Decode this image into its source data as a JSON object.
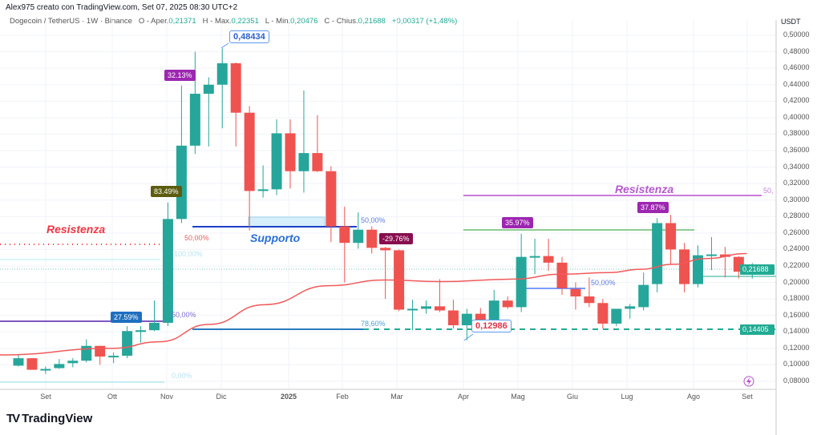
{
  "header": {
    "credit": "Alex975 creato con TradingView.com, Set 07, 2025 08:30 UTC+2",
    "symbol": "Dogecoin / TetherUS · 1W · Binance",
    "open_label": "O - Aper.",
    "open": "0,21371",
    "high_label": "H - Max.",
    "high": "0,22351",
    "low_label": "L - Min.",
    "low": "0,20476",
    "close_label": "C - Chius.",
    "close": "0,21688",
    "change": "+0,00317 (+1,48%)"
  },
  "price_axis": {
    "currency": "USDT",
    "ticks": [
      "0,50000",
      "0,48000",
      "0,46000",
      "0,44000",
      "0,42000",
      "0,40000",
      "0,38000",
      "0,36000",
      "0,34000",
      "0,32000",
      "0,30000",
      "0,28000",
      "0,26000",
      "0,24000",
      "0,22000",
      "0,20000",
      "0,18000",
      "0,16000",
      "0,14000",
      "0,12000",
      "0,10000",
      "0,08000"
    ],
    "current_price": "0,21688",
    "level_price": "0,14405"
  },
  "time_axis": [
    "Set",
    "Ott",
    "Nov",
    "Dic",
    "2025",
    "Feb",
    "Mar",
    "Apr",
    "Mag",
    "Giu",
    "Lug",
    "Ago",
    "Set"
  ],
  "annotations": {
    "resistenza_left": "Resistenza",
    "resistenza_right": "Resistenza",
    "supporto": "Supporto",
    "fib_50_red": "50,00%",
    "fib_100": "100,00%",
    "fib_50_purple": "50,00%",
    "fib_0": "0,00%",
    "fib_50_support": "50,00%",
    "fib_786": "78,60%",
    "fib_50_mag": "50,00%",
    "fib_50_right": "50,",
    "high_box": "0,48434",
    "low_box": "0,12986",
    "tag_2759": "27.59%",
    "tag_8349": "83.49%",
    "tag_3213": "32.13%",
    "tag_2976": "-29.76%",
    "tag_3597": "35.97%",
    "tag_3787": "37.87%"
  },
  "colors": {
    "up": "#26a69a",
    "down": "#ef5350",
    "ma": "#f05a5a",
    "grid": "#f0f3fa"
  },
  "brand": "TradingView",
  "chart_data": {
    "type": "candlestick",
    "interval": "1W",
    "ylim": [
      0.07,
      0.51
    ],
    "candles": [
      [
        0.099,
        0.113,
        0.098,
        0.108
      ],
      [
        0.108,
        0.108,
        0.094,
        0.094
      ],
      [
        0.094,
        0.098,
        0.089,
        0.095
      ],
      [
        0.096,
        0.107,
        0.095,
        0.101
      ],
      [
        0.102,
        0.108,
        0.097,
        0.105
      ],
      [
        0.105,
        0.131,
        0.103,
        0.123
      ],
      [
        0.123,
        0.123,
        0.1,
        0.11
      ],
      [
        0.11,
        0.115,
        0.102,
        0.111
      ],
      [
        0.111,
        0.147,
        0.108,
        0.141
      ],
      [
        0.14,
        0.147,
        0.127,
        0.142
      ],
      [
        0.142,
        0.178,
        0.141,
        0.151
      ],
      [
        0.151,
        0.297,
        0.147,
        0.277
      ],
      [
        0.277,
        0.439,
        0.272,
        0.366
      ],
      [
        0.366,
        0.48,
        0.356,
        0.429
      ],
      [
        0.429,
        0.449,
        0.365,
        0.44
      ],
      [
        0.44,
        0.484,
        0.387,
        0.466
      ],
      [
        0.466,
        0.467,
        0.365,
        0.406
      ],
      [
        0.406,
        0.414,
        0.263,
        0.311
      ],
      [
        0.311,
        0.342,
        0.303,
        0.313
      ],
      [
        0.313,
        0.398,
        0.306,
        0.381
      ],
      [
        0.381,
        0.398,
        0.314,
        0.335
      ],
      [
        0.335,
        0.433,
        0.309,
        0.357
      ],
      [
        0.357,
        0.403,
        0.334,
        0.335
      ],
      [
        0.335,
        0.341,
        0.249,
        0.268
      ],
      [
        0.268,
        0.292,
        0.2,
        0.248
      ],
      [
        0.248,
        0.285,
        0.241,
        0.264
      ],
      [
        0.264,
        0.268,
        0.235,
        0.242
      ],
      [
        0.242,
        0.243,
        0.18,
        0.239
      ],
      [
        0.239,
        0.24,
        0.165,
        0.167
      ],
      [
        0.167,
        0.179,
        0.142,
        0.168
      ],
      [
        0.168,
        0.178,
        0.162,
        0.171
      ],
      [
        0.171,
        0.204,
        0.164,
        0.166
      ],
      [
        0.166,
        0.179,
        0.144,
        0.148
      ],
      [
        0.148,
        0.168,
        0.13,
        0.162
      ],
      [
        0.162,
        0.169,
        0.149,
        0.154
      ],
      [
        0.154,
        0.191,
        0.152,
        0.178
      ],
      [
        0.178,
        0.183,
        0.168,
        0.17
      ],
      [
        0.17,
        0.259,
        0.164,
        0.231
      ],
      [
        0.231,
        0.253,
        0.21,
        0.232
      ],
      [
        0.232,
        0.253,
        0.214,
        0.224
      ],
      [
        0.224,
        0.231,
        0.185,
        0.193
      ],
      [
        0.192,
        0.2,
        0.167,
        0.183
      ],
      [
        0.183,
        0.206,
        0.17,
        0.175
      ],
      [
        0.175,
        0.18,
        0.144,
        0.15
      ],
      [
        0.15,
        0.168,
        0.147,
        0.168
      ],
      [
        0.168,
        0.174,
        0.156,
        0.171
      ],
      [
        0.17,
        0.212,
        0.166,
        0.197
      ],
      [
        0.198,
        0.278,
        0.188,
        0.272
      ],
      [
        0.272,
        0.282,
        0.222,
        0.24
      ],
      [
        0.24,
        0.248,
        0.188,
        0.198
      ],
      [
        0.198,
        0.245,
        0.194,
        0.233
      ],
      [
        0.233,
        0.255,
        0.215,
        0.234
      ],
      [
        0.234,
        0.243,
        0.206,
        0.231
      ],
      [
        0.231,
        0.232,
        0.205,
        0.213
      ],
      [
        0.21371,
        0.22351,
        0.20476,
        0.21688
      ]
    ],
    "moving_average": [
      [
        -1.4,
        0.112
      ],
      [
        6.9,
        0.12
      ],
      [
        10.4,
        0.128
      ],
      [
        14,
        0.149
      ],
      [
        18.1,
        0.173
      ],
      [
        22.8,
        0.196
      ],
      [
        27,
        0.203
      ],
      [
        31.1,
        0.201
      ],
      [
        36.4,
        0.204
      ],
      [
        40,
        0.21
      ],
      [
        43.5,
        0.212
      ],
      [
        45.8,
        0.216
      ],
      [
        48.2,
        0.222
      ],
      [
        50.6,
        0.229
      ],
      [
        53.6,
        0.235
      ]
    ]
  }
}
